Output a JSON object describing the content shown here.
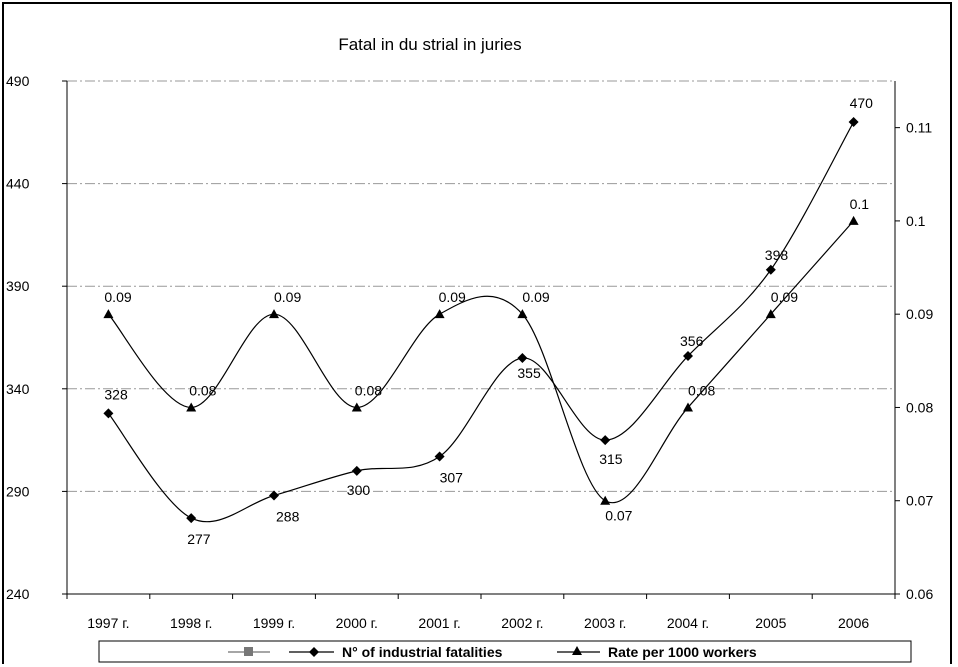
{
  "chart_data": {
    "type": "line",
    "title": "Fatal in du strial in juries",
    "categories": [
      "1997 г.",
      "1998 г.",
      "1999 г.",
      "2000 г.",
      "2001 г.",
      "2002 г.",
      "2003 г.",
      "2004 г.",
      "2005",
      "2006"
    ],
    "series": [
      {
        "name": "N° of industrial fatalities",
        "axis": "left",
        "marker": "diamond",
        "values": [
          328,
          277,
          288,
          300,
          307,
          355,
          315,
          356,
          398,
          470
        ],
        "labels": [
          "328",
          "277",
          "288",
          "300",
          "307",
          "355",
          "315",
          "356",
          "398",
          "470"
        ]
      },
      {
        "name": "Rate per 1000 workers",
        "axis": "right",
        "marker": "triangle",
        "values": [
          0.09,
          0.08,
          0.09,
          0.08,
          0.09,
          0.09,
          0.07,
          0.08,
          0.09,
          0.1
        ],
        "labels": [
          "0.09",
          "0.08",
          "0.09",
          "0.08",
          "0.09",
          "0.09",
          "0.07",
          "0.08",
          "0.09",
          "0.1"
        ]
      }
    ],
    "y_left": {
      "ylim": [
        240,
        490
      ],
      "ticks": [
        "240",
        "290",
        "340",
        "390",
        "440",
        "490"
      ]
    },
    "y_right": {
      "ylim": [
        0.06,
        0.115
      ],
      "ticks": [
        "0.06",
        "0.07",
        "0.08",
        "0.09",
        "0.1",
        "0.11"
      ]
    },
    "grid": "horizontal dash-dot",
    "legend": {
      "placement": "bottom",
      "entries": [
        "",
        "N° of industrial fatalities",
        "Rate per 1000 workers"
      ]
    }
  }
}
